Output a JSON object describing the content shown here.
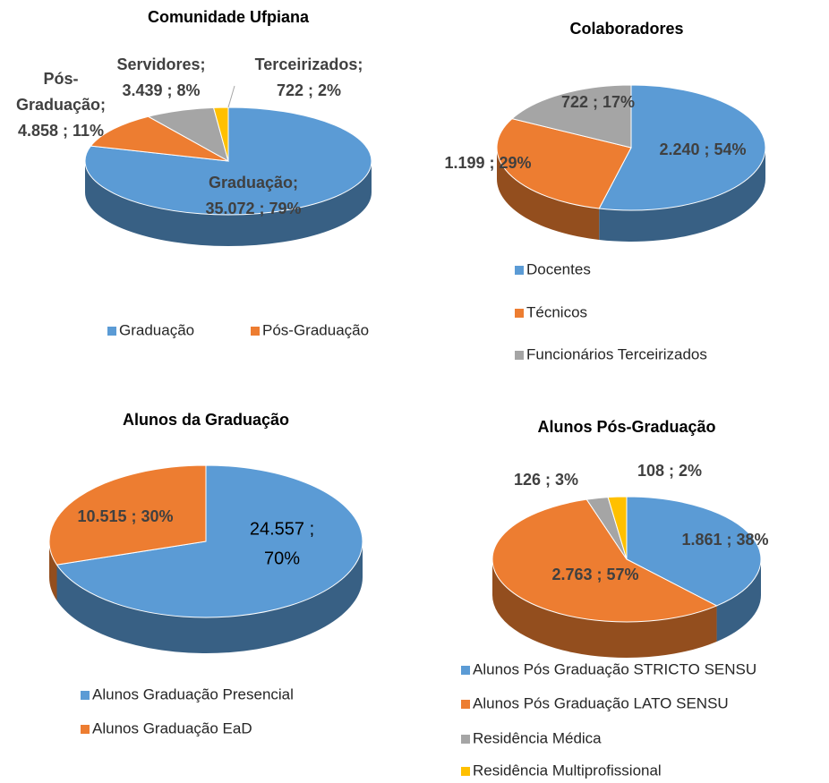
{
  "chart_data": [
    {
      "type": "pie",
      "title": "Comunidade Ufpiana",
      "values": [
        35072,
        4858,
        3439,
        722
      ],
      "value_labels": [
        [
          "Graduação;",
          "35.072 ; 79%"
        ],
        [
          "Pós-",
          "Graduação;",
          "4.858 ; 11%"
        ],
        [
          "Servidores;",
          "3.439 ; 8%"
        ],
        [
          "Terceirizados;",
          "722 ; 2%"
        ]
      ],
      "colors": [
        "#5b9bd5",
        "#ed7d31",
        "#a5a5a5",
        "#ffc000"
      ],
      "legend": [
        "Graduação",
        "Pós-Graduação"
      ]
    },
    {
      "type": "pie",
      "title": "Colaboradores",
      "categories": [
        "Docentes",
        "Técnicos",
        "Funcionários Terceirizados"
      ],
      "values": [
        2240,
        1199,
        722
      ],
      "value_labels": [
        [
          "2.240 ; 54%"
        ],
        [
          "1.199 ; 29%"
        ],
        [
          "722 ; 17%"
        ]
      ],
      "colors": [
        "#5b9bd5",
        "#ed7d31",
        "#a5a5a5"
      ]
    },
    {
      "type": "pie",
      "title": "Alunos da Graduação",
      "categories": [
        "Alunos Graduação Presencial",
        "Alunos Graduação EaD"
      ],
      "values": [
        24557,
        10515
      ],
      "value_labels": [
        [
          "24.557 ;",
          "70%"
        ],
        [
          "10.515 ; 30%"
        ]
      ],
      "colors": [
        "#5b9bd5",
        "#ed7d31"
      ]
    },
    {
      "type": "pie",
      "title": "Alunos Pós-Graduação",
      "categories": [
        "Alunos Pós Graduação STRICTO SENSU",
        "Alunos Pós Graduação LATO SENSU",
        "Residência Médica",
        "Residência Multiprofissional"
      ],
      "values": [
        1861,
        2763,
        126,
        108
      ],
      "value_labels": [
        [
          "1.861 ; 38%"
        ],
        [
          "2.763 ; 57%"
        ],
        [
          "126 ; 3%"
        ],
        [
          "108 ; 2%"
        ]
      ],
      "colors": [
        "#5b9bd5",
        "#ed7d31",
        "#a5a5a5",
        "#ffc000"
      ]
    }
  ]
}
